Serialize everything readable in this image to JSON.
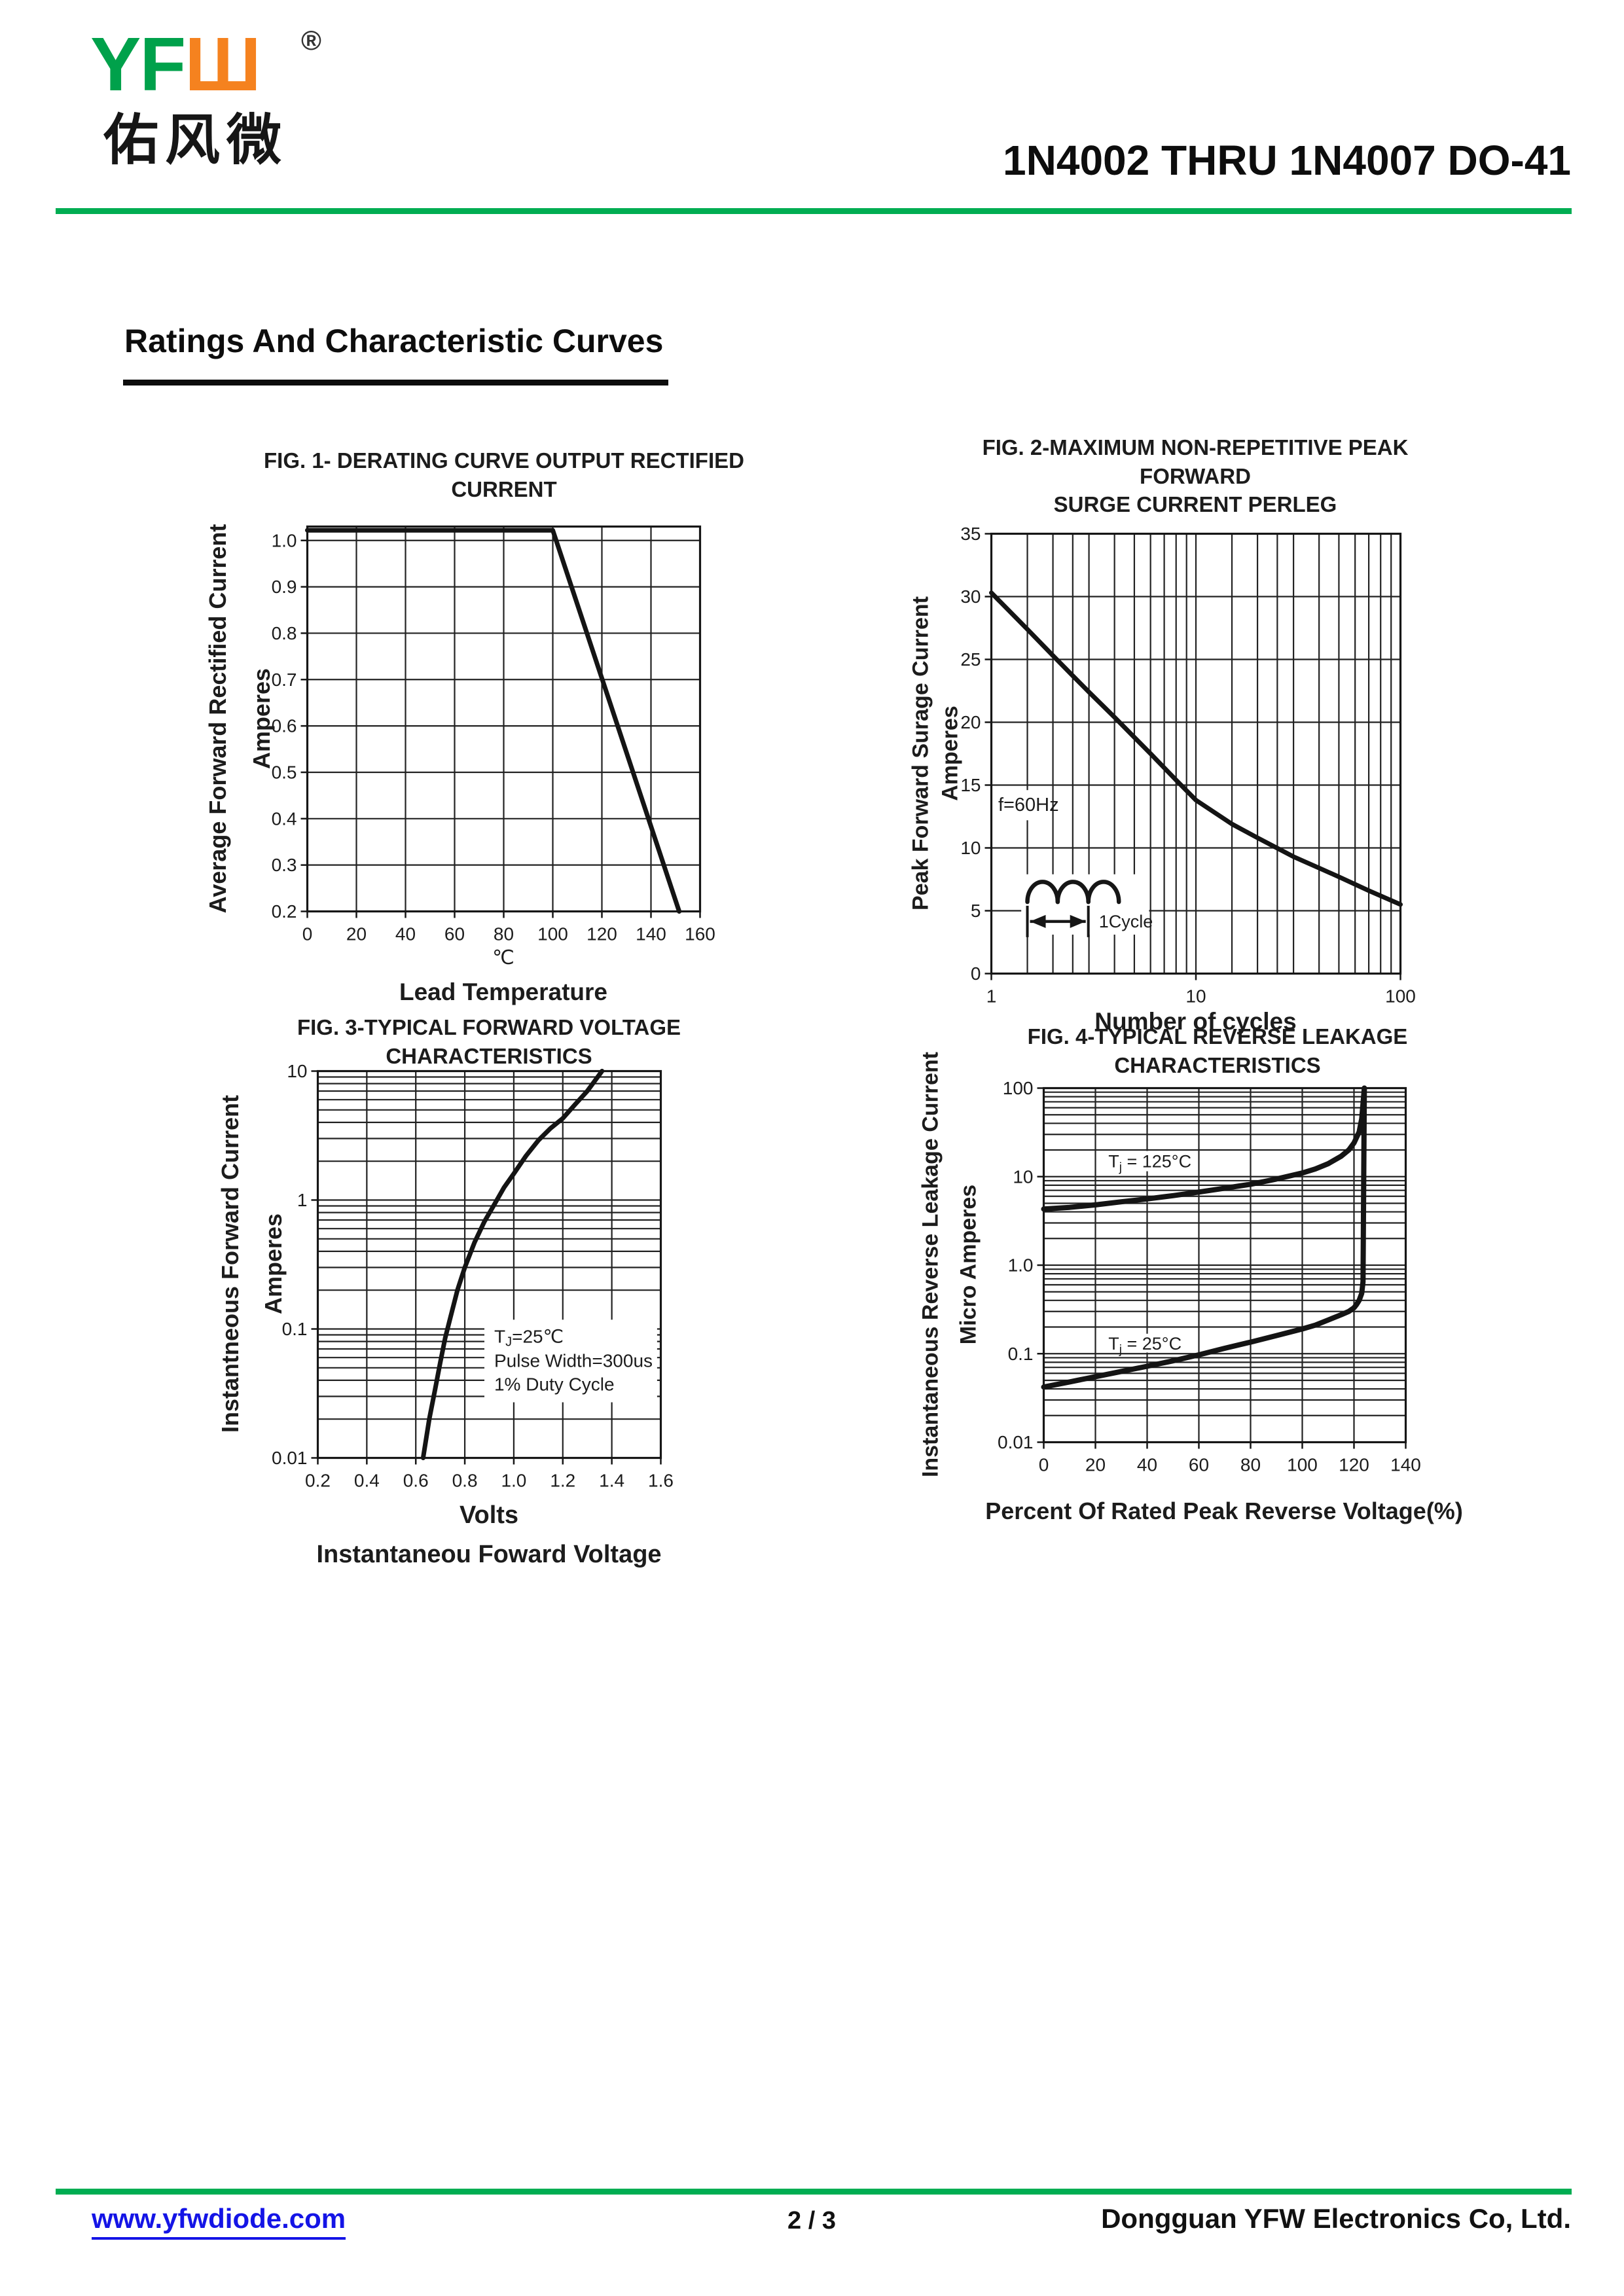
{
  "page": {
    "header": {
      "logo_yf": "YF",
      "logo_w": "Ш",
      "registered": "®",
      "logo_cn": "佑风微",
      "title": "1N4002 THRU 1N4007  DO-41"
    },
    "heading": "Ratings And  Characteristic Curves",
    "footer": {
      "url": "www.yfwdiode.com",
      "page_number": "2 / 3",
      "company": "Dongguan YFW Electronics Co, Ltd."
    },
    "colors": {
      "accent_green": "#00ad52",
      "logo_green": "#00a14b",
      "logo_orange": "#f5821f",
      "link_blue": "#1414e6"
    }
  },
  "chart_data": [
    {
      "type": "line",
      "title": "FIG. 1- DERATING CURVE OUTPUT RECTIFIED CURRENT",
      "xlabel_note": "℃",
      "xlabel": "Lead Temperature",
      "ylabel": "Average Forward Rectified Current",
      "ylabel2": "Amperes",
      "stroke": 7,
      "x": {
        "scale": "linear",
        "min": 0,
        "max": 160,
        "grid": [
          20,
          40,
          60,
          80,
          100,
          120,
          140
        ],
        "tick_vals": [
          0,
          20,
          40,
          60,
          80,
          100,
          120,
          140,
          160
        ],
        "tick_labels": [
          "0",
          "20",
          "40",
          "60",
          "80",
          "100",
          "120",
          "140",
          "160"
        ]
      },
      "y": {
        "scale": "linear",
        "min": 0.2,
        "max": 1.03,
        "grid": [
          0.3,
          0.4,
          0.5,
          0.6,
          0.7,
          0.8,
          0.9,
          1.0
        ],
        "tick_vals": [
          1.0,
          0.9,
          0.8,
          0.7,
          0.6,
          0.5,
          0.4,
          0.3,
          0.2
        ],
        "tick_labels": [
          "1.0",
          "0.9",
          "0.8",
          "0.7",
          "0.6",
          "0.5",
          "0.4",
          "0.3",
          "0.2"
        ]
      },
      "series": [
        {
          "name": "output-rectified-current",
          "points": [
            [
              0,
              1.022
            ],
            [
              100,
              1.022
            ],
            [
              151.5,
              0.2
            ]
          ]
        }
      ],
      "annotations": []
    },
    {
      "type": "line",
      "title_line1": "FIG. 2-MAXIMUM NON-REPETITIVE PEAK FORWARD",
      "title_line2": "SURGE CURRENT PERLEG",
      "xlabel": "Number of cycles",
      "ylabel": "Peak Forward Surage Current",
      "ylabel2": "Amperes",
      "stroke": 7,
      "x": {
        "scale": "log",
        "min": 1,
        "max": 100,
        "grid": [
          1.5,
          2,
          2.5,
          3,
          4,
          5,
          6,
          7,
          8,
          9,
          10,
          15,
          20,
          25,
          30,
          40,
          50,
          60,
          70,
          80,
          90
        ],
        "tick_vals": [
          1,
          10,
          100
        ],
        "tick_labels": [
          "1",
          "10",
          "100"
        ]
      },
      "y": {
        "scale": "linear",
        "min": 0,
        "max": 35,
        "grid": [
          5,
          10,
          15,
          20,
          25,
          30
        ],
        "tick_vals": [
          0,
          5,
          10,
          15,
          20,
          25,
          30,
          35
        ],
        "tick_labels": [
          "0",
          "5",
          "10",
          "15",
          "20",
          "25",
          "30",
          "35"
        ]
      },
      "series": [
        {
          "name": "surge-current",
          "points": [
            [
              1,
              30.3
            ],
            [
              1.5,
              27.4
            ],
            [
              2,
              25.3
            ],
            [
              2.5,
              23.7
            ],
            [
              3,
              22.4
            ],
            [
              4,
              20.4
            ],
            [
              5,
              18.8
            ],
            [
              6,
              17.5
            ],
            [
              8,
              15.4
            ],
            [
              10,
              13.8
            ],
            [
              15,
              11.9
            ],
            [
              20,
              10.8
            ],
            [
              30,
              9.3
            ],
            [
              40,
              8.4
            ],
            [
              50,
              7.7
            ],
            [
              70,
              6.6
            ],
            [
              100,
              5.5
            ]
          ]
        }
      ],
      "annotations": [
        {
          "type": "bg",
          "x1": 1.05,
          "x2": 1.95,
          "y1": 12.2,
          "y2": 14.6
        },
        {
          "type": "text",
          "x": 1.08,
          "y": 13.4,
          "label": "f=60Hz",
          "size": 29,
          "anchor": "start"
        },
        {
          "type": "bg",
          "x1": 1.4,
          "x2": 5.9,
          "y1": 3.1,
          "y2": 7.9
        },
        {
          "type": "cycle",
          "humps": [
            [
              1.5,
              2.11
            ],
            [
              2.11,
              2.98
            ],
            [
              2.98,
              4.2
            ]
          ],
          "ytop": 7.3,
          "ybase": 5.7,
          "x1": 1.5,
          "x2": 2.98,
          "yarrow": 4.15,
          "label": "1Cycle",
          "size": 27
        }
      ]
    },
    {
      "type": "line",
      "title": "FIG. 3-TYPICAL FORWARD VOLTAGE CHARACTERISTICS",
      "xlabel": "Volts",
      "xlabel2": "Instantaneou Foward Voltage",
      "ylabel": "Instantneous Forward Current",
      "ylabel2": "Amperes",
      "stroke": 7,
      "x": {
        "scale": "linear",
        "min": 0.2,
        "max": 1.6,
        "grid": [
          0.4,
          0.6,
          0.8,
          1.0,
          1.2,
          1.4
        ],
        "tick_vals": [
          0.2,
          0.4,
          0.6,
          0.8,
          1.0,
          1.2,
          1.4,
          1.6
        ],
        "tick_labels": [
          "0.2",
          "0.4",
          "0.6",
          "0.8",
          "1.0",
          "1.2",
          "1.4",
          "1.6"
        ]
      },
      "y": {
        "scale": "log",
        "min": 0.01,
        "max": 10,
        "grid": [
          0.02,
          0.03,
          0.04,
          0.05,
          0.06,
          0.07,
          0.08,
          0.09,
          0.1,
          0.2,
          0.3,
          0.4,
          0.5,
          0.6,
          0.7,
          0.8,
          0.9,
          1,
          2,
          3,
          4,
          5,
          6,
          7,
          8,
          9
        ],
        "tick_vals": [
          10,
          1,
          0.1,
          0.01
        ],
        "tick_labels": [
          "10",
          "1",
          "0.1",
          "0.01"
        ]
      },
      "series": [
        {
          "name": "forward-voltage",
          "points": [
            [
              0.63,
              0.01
            ],
            [
              0.655,
              0.02
            ],
            [
              0.68,
              0.035
            ],
            [
              0.7,
              0.055
            ],
            [
              0.72,
              0.085
            ],
            [
              0.74,
              0.12
            ],
            [
              0.77,
              0.2
            ],
            [
              0.8,
              0.3
            ],
            [
              0.84,
              0.47
            ],
            [
              0.88,
              0.68
            ],
            [
              0.92,
              0.92
            ],
            [
              0.96,
              1.25
            ],
            [
              1.0,
              1.6
            ],
            [
              1.05,
              2.2
            ],
            [
              1.1,
              2.9
            ],
            [
              1.15,
              3.6
            ],
            [
              1.2,
              4.3
            ],
            [
              1.25,
              5.5
            ],
            [
              1.3,
              7.0
            ],
            [
              1.36,
              10
            ]
          ]
        }
      ],
      "annotations": [
        {
          "type": "bg",
          "x1": 0.88,
          "x2": 1.585,
          "y1": 0.027,
          "y2": 0.118
        },
        {
          "type": "text",
          "x": 0.92,
          "y": 0.088,
          "label": "T_J_=25℃",
          "size": 28,
          "anchor": "start"
        },
        {
          "type": "text",
          "x": 0.92,
          "y": 0.057,
          "label": "Pulse Width=300us",
          "size": 28,
          "anchor": "start"
        },
        {
          "type": "text",
          "x": 0.92,
          "y": 0.0375,
          "label": "1% Duty Cycle",
          "size": 28,
          "anchor": "start"
        }
      ]
    },
    {
      "type": "line",
      "title": "FIG. 4-TYPICAL REVERSE LEAKAGE CHARACTERISTICS",
      "xlabel": "Percent Of Rated Peak Reverse Voltage(%)",
      "ylabel": "Instantaneous Reverse Leakage Current",
      "ylabel2": "Micro Amperes",
      "stroke": 8,
      "x": {
        "scale": "linear",
        "min": 0,
        "max": 140,
        "grid": [
          20,
          40,
          60,
          80,
          100,
          120
        ],
        "tick_vals": [
          0,
          20,
          40,
          60,
          80,
          100,
          120,
          140
        ],
        "tick_labels": [
          "0",
          "20",
          "40",
          "60",
          "80",
          "100",
          "120",
          "140"
        ]
      },
      "y": {
        "scale": "log",
        "min": 0.01,
        "max": 100,
        "grid": [
          0.02,
          0.03,
          0.04,
          0.05,
          0.06,
          0.07,
          0.08,
          0.09,
          0.1,
          0.2,
          0.3,
          0.4,
          0.5,
          0.6,
          0.7,
          0.8,
          0.9,
          1,
          2,
          3,
          4,
          5,
          6,
          7,
          8,
          9,
          10,
          20,
          30,
          40,
          50,
          60,
          70,
          80,
          90
        ],
        "tick_vals": [
          100,
          10,
          1,
          0.1,
          0.01
        ],
        "tick_labels": [
          "100",
          "10",
          "1.0",
          "0.1",
          "0.01"
        ]
      },
      "series": [
        {
          "name": "leakage-125c",
          "points": [
            [
              0,
              4.3
            ],
            [
              10,
              4.5
            ],
            [
              20,
              4.8
            ],
            [
              30,
              5.2
            ],
            [
              40,
              5.6
            ],
            [
              50,
              6.1
            ],
            [
              60,
              6.7
            ],
            [
              70,
              7.4
            ],
            [
              80,
              8.2
            ],
            [
              90,
              9.4
            ],
            [
              100,
              11
            ],
            [
              105,
              12.2
            ],
            [
              110,
              14
            ],
            [
              115,
              17
            ],
            [
              118,
              20
            ],
            [
              120,
              24
            ],
            [
              122,
              32
            ],
            [
              123,
              45
            ],
            [
              124,
              100
            ]
          ]
        },
        {
          "name": "leakage-25c",
          "points": [
            [
              0,
              0.042
            ],
            [
              10,
              0.048
            ],
            [
              20,
              0.055
            ],
            [
              30,
              0.063
            ],
            [
              40,
              0.072
            ],
            [
              50,
              0.083
            ],
            [
              60,
              0.097
            ],
            [
              70,
              0.115
            ],
            [
              80,
              0.135
            ],
            [
              90,
              0.16
            ],
            [
              100,
              0.19
            ],
            [
              105,
              0.21
            ],
            [
              110,
              0.24
            ],
            [
              115,
              0.275
            ],
            [
              118,
              0.3
            ],
            [
              120,
              0.33
            ],
            [
              121,
              0.36
            ],
            [
              122,
              0.4
            ],
            [
              123,
              0.48
            ],
            [
              123.5,
              0.65
            ],
            [
              124,
              100
            ]
          ]
        }
      ],
      "annotations": [
        {
          "type": "bg",
          "x1": 23,
          "x2": 56,
          "y1": 11.5,
          "y2": 19.5
        },
        {
          "type": "text",
          "x": 25,
          "y": 14.8,
          "label": "T_j_ = 125°C",
          "size": 27,
          "anchor": "start"
        },
        {
          "type": "bg",
          "x1": 23,
          "x2": 54,
          "y1": 0.103,
          "y2": 0.168
        },
        {
          "type": "text",
          "x": 25,
          "y": 0.13,
          "label": "T_j_ = 25°C",
          "size": 27,
          "anchor": "start"
        }
      ]
    }
  ]
}
